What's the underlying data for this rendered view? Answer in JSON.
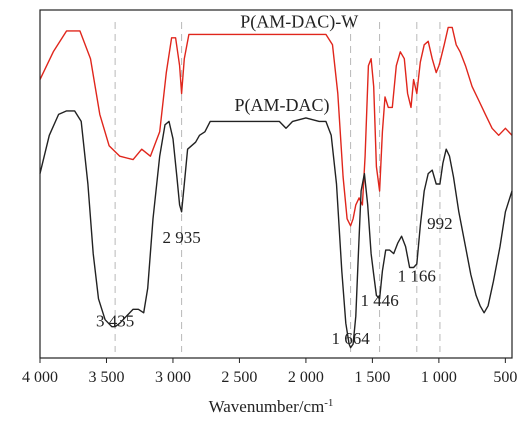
{
  "chart_data": {
    "type": "line",
    "xlabel": "Wavenumber/cm",
    "xlabel_sup": "-1",
    "xlim": [
      4000,
      450
    ],
    "x_reversed": true,
    "x_ticks": [
      {
        "value": 4000,
        "label": "4 000"
      },
      {
        "value": 3500,
        "label": "3 500"
      },
      {
        "value": 3000,
        "label": "3 000"
      },
      {
        "value": 2500,
        "label": "2 500"
      },
      {
        "value": 2000,
        "label": "2 000"
      },
      {
        "value": 1500,
        "label": "1 500"
      },
      {
        "value": 1000,
        "label": "1 000"
      },
      {
        "value": 500,
        "label": "500"
      }
    ],
    "ylim": [
      0,
      100
    ],
    "y_ticks_shown": false,
    "reference_lines": [
      3435,
      2935,
      1664,
      1446,
      1166,
      992
    ],
    "annotations": [
      {
        "text": "3 435",
        "x": 3435,
        "y": 9
      },
      {
        "text": "2 935",
        "x": 2935,
        "y": 33
      },
      {
        "text": "1 664",
        "x": 1664,
        "y": 4
      },
      {
        "text": "1 446",
        "x": 1446,
        "y": 15
      },
      {
        "text": "1 166",
        "x": 1166,
        "y": 22
      },
      {
        "text": "992",
        "x": 992,
        "y": 37
      }
    ],
    "series": [
      {
        "name": "P(AM-DAC)-W",
        "color": "#e0261c",
        "points": [
          [
            4000,
            80
          ],
          [
            3900,
            88
          ],
          [
            3800,
            94
          ],
          [
            3700,
            94
          ],
          [
            3620,
            86
          ],
          [
            3550,
            70
          ],
          [
            3480,
            61
          ],
          [
            3400,
            58
          ],
          [
            3300,
            57
          ],
          [
            3235,
            60
          ],
          [
            3170,
            58
          ],
          [
            3100,
            65
          ],
          [
            3050,
            82
          ],
          [
            3010,
            92
          ],
          [
            2980,
            92
          ],
          [
            2950,
            84
          ],
          [
            2935,
            76
          ],
          [
            2915,
            86
          ],
          [
            2880,
            93
          ],
          [
            2800,
            93
          ],
          [
            2600,
            93
          ],
          [
            2400,
            93
          ],
          [
            2200,
            93
          ],
          [
            2000,
            93
          ],
          [
            1850,
            93
          ],
          [
            1800,
            90
          ],
          [
            1760,
            76
          ],
          [
            1720,
            52
          ],
          [
            1690,
            40
          ],
          [
            1664,
            38
          ],
          [
            1645,
            40
          ],
          [
            1625,
            44
          ],
          [
            1600,
            46
          ],
          [
            1575,
            44
          ],
          [
            1555,
            58
          ],
          [
            1530,
            84
          ],
          [
            1510,
            86
          ],
          [
            1490,
            78
          ],
          [
            1470,
            55
          ],
          [
            1446,
            48
          ],
          [
            1425,
            65
          ],
          [
            1405,
            75
          ],
          [
            1380,
            72
          ],
          [
            1350,
            72
          ],
          [
            1320,
            84
          ],
          [
            1290,
            88
          ],
          [
            1260,
            86
          ],
          [
            1235,
            76
          ],
          [
            1210,
            72
          ],
          [
            1190,
            80
          ],
          [
            1166,
            76
          ],
          [
            1140,
            85
          ],
          [
            1110,
            90
          ],
          [
            1080,
            91
          ],
          [
            1050,
            86
          ],
          [
            1020,
            82
          ],
          [
            1000,
            84
          ],
          [
            992,
            85
          ],
          [
            960,
            90
          ],
          [
            930,
            95
          ],
          [
            900,
            95
          ],
          [
            870,
            90
          ],
          [
            840,
            88
          ],
          [
            800,
            84
          ],
          [
            750,
            78
          ],
          [
            700,
            74
          ],
          [
            650,
            70
          ],
          [
            600,
            66
          ],
          [
            550,
            64
          ],
          [
            500,
            66
          ],
          [
            450,
            64
          ]
        ]
      },
      {
        "name": "P(AM-DAC)",
        "color": "#222222",
        "points": [
          [
            4000,
            53
          ],
          [
            3930,
            64
          ],
          [
            3860,
            70
          ],
          [
            3800,
            71
          ],
          [
            3740,
            71
          ],
          [
            3690,
            68
          ],
          [
            3640,
            50
          ],
          [
            3600,
            30
          ],
          [
            3560,
            17
          ],
          [
            3510,
            11
          ],
          [
            3460,
            9
          ],
          [
            3435,
            9
          ],
          [
            3400,
            10
          ],
          [
            3350,
            12
          ],
          [
            3300,
            14
          ],
          [
            3260,
            14
          ],
          [
            3220,
            13
          ],
          [
            3190,
            20
          ],
          [
            3150,
            40
          ],
          [
            3100,
            58
          ],
          [
            3060,
            67
          ],
          [
            3030,
            68
          ],
          [
            3000,
            63
          ],
          [
            2970,
            52
          ],
          [
            2950,
            44
          ],
          [
            2935,
            42
          ],
          [
            2915,
            50
          ],
          [
            2890,
            60
          ],
          [
            2860,
            61
          ],
          [
            2830,
            62
          ],
          [
            2800,
            64
          ],
          [
            2760,
            65
          ],
          [
            2720,
            68
          ],
          [
            2600,
            68
          ],
          [
            2400,
            68
          ],
          [
            2200,
            68
          ],
          [
            2150,
            66
          ],
          [
            2100,
            68
          ],
          [
            2000,
            69
          ],
          [
            1900,
            68
          ],
          [
            1850,
            68
          ],
          [
            1810,
            64
          ],
          [
            1770,
            50
          ],
          [
            1730,
            25
          ],
          [
            1700,
            10
          ],
          [
            1675,
            4
          ],
          [
            1664,
            3
          ],
          [
            1645,
            4
          ],
          [
            1625,
            12
          ],
          [
            1605,
            30
          ],
          [
            1585,
            48
          ],
          [
            1560,
            53
          ],
          [
            1535,
            44
          ],
          [
            1510,
            30
          ],
          [
            1490,
            24
          ],
          [
            1470,
            18
          ],
          [
            1446,
            17
          ],
          [
            1425,
            25
          ],
          [
            1400,
            31
          ],
          [
            1370,
            31
          ],
          [
            1340,
            30
          ],
          [
            1310,
            33
          ],
          [
            1280,
            35
          ],
          [
            1250,
            32
          ],
          [
            1220,
            26
          ],
          [
            1190,
            26
          ],
          [
            1166,
            27
          ],
          [
            1140,
            38
          ],
          [
            1110,
            48
          ],
          [
            1080,
            53
          ],
          [
            1050,
            54
          ],
          [
            1020,
            50
          ],
          [
            992,
            50
          ],
          [
            970,
            56
          ],
          [
            945,
            60
          ],
          [
            920,
            58
          ],
          [
            890,
            52
          ],
          [
            850,
            42
          ],
          [
            800,
            32
          ],
          [
            760,
            24
          ],
          [
            720,
            18
          ],
          [
            690,
            15
          ],
          [
            660,
            13
          ],
          [
            630,
            15
          ],
          [
            590,
            22
          ],
          [
            540,
            32
          ],
          [
            500,
            42
          ],
          [
            450,
            48
          ]
        ]
      }
    ]
  }
}
